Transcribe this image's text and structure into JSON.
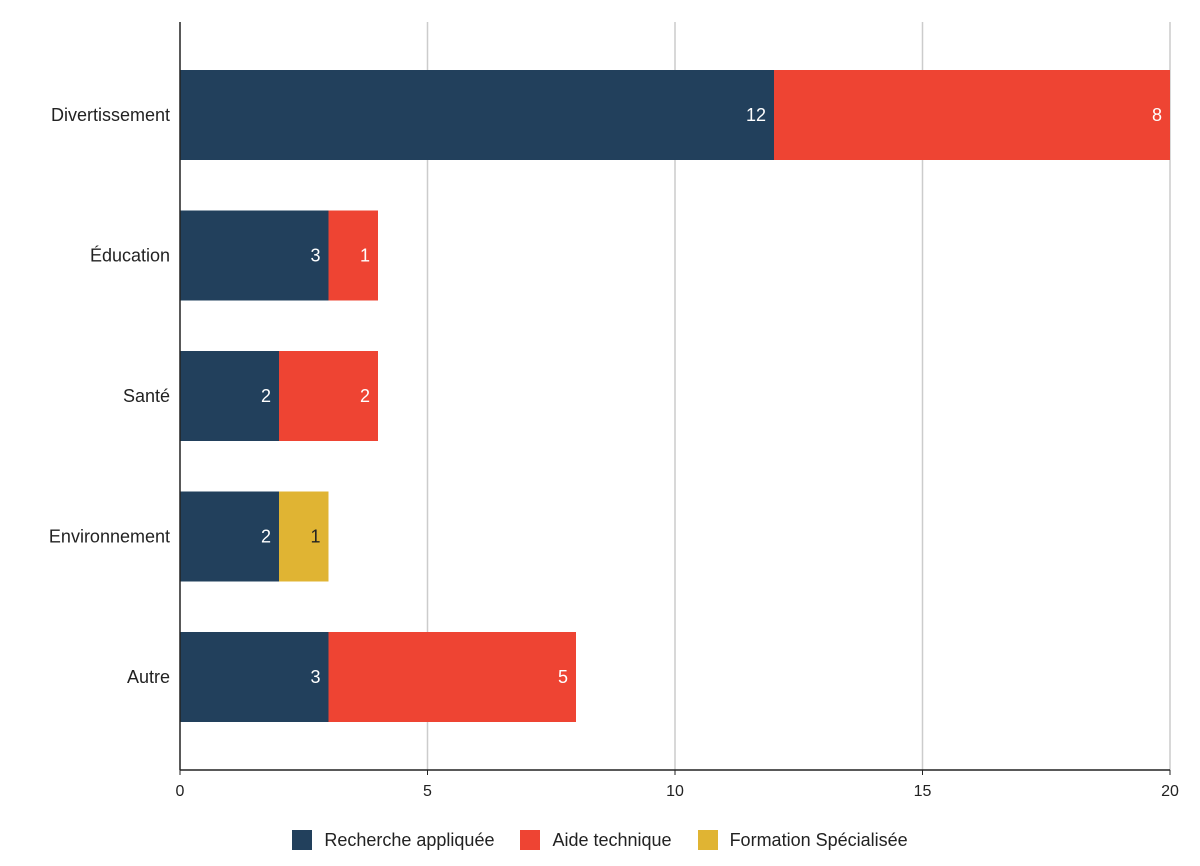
{
  "chart_data": {
    "type": "bar",
    "orientation": "horizontal",
    "stacked": true,
    "categories": [
      "Divertissement",
      "Éducation",
      "Santé",
      "Environnement",
      "Autre"
    ],
    "series": [
      {
        "name": "Recherche appliquée",
        "color": "#22405c",
        "values": [
          12,
          3,
          2,
          2,
          3
        ]
      },
      {
        "name": "Aide technique",
        "color": "#ee4433",
        "values": [
          8,
          1,
          2,
          0,
          5
        ]
      },
      {
        "name": "Formation Spécialisée",
        "color": "#e0b433",
        "values": [
          0,
          0,
          0,
          1,
          0
        ]
      }
    ],
    "xlim": [
      0,
      20
    ],
    "xticks": [
      0,
      5,
      10,
      15,
      20
    ],
    "grid": "vertical",
    "legend_position": "bottom-center",
    "data_labels": true
  }
}
